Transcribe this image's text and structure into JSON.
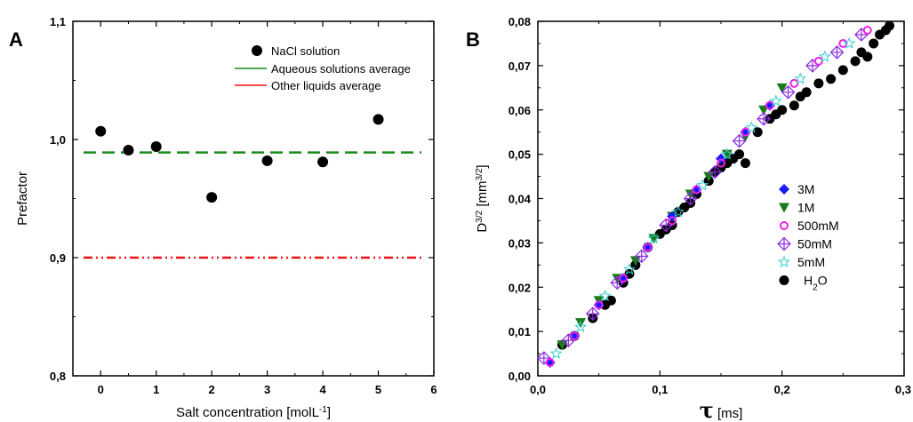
{
  "chart_data": [
    {
      "panel": "A",
      "type": "scatter",
      "xlabel": "Salt concentration [molL",
      "xlabel_sup": "-1",
      "xlabel_end": "]",
      "ylabel": "Prefactor",
      "xlim": [
        -0.5,
        6
      ],
      "ylim": [
        0.8,
        1.1
      ],
      "xticks": [
        0,
        1,
        2,
        3,
        4,
        5,
        6
      ],
      "xtick_labels": [
        "0",
        "1",
        "2",
        "3",
        "4",
        "5",
        "6"
      ],
      "yticks": [
        0.8,
        0.9,
        1.0,
        1.1
      ],
      "ytick_labels": [
        "0,8",
        "0,9",
        "1,0",
        "1,1"
      ],
      "legend_position": "top-right",
      "series": [
        {
          "name": "NaCl solution",
          "color": "#000000",
          "x": [
            0,
            0.5,
            1,
            2,
            3,
            4,
            5
          ],
          "y": [
            1.007,
            0.991,
            0.994,
            0.951,
            0.982,
            0.981,
            1.017
          ]
        }
      ],
      "reference_lines": [
        {
          "name": "Aqueous solutions average",
          "y": 0.989,
          "color": "#1a8a1a",
          "style": "dashed"
        },
        {
          "name": "Other liquids average",
          "y": 0.9,
          "color": "#ee1111",
          "style": "dash-dot-dot"
        }
      ]
    },
    {
      "panel": "B",
      "type": "scatter",
      "xlabel_symbol": "τ",
      "xlabel_unit": " [ms]",
      "ylabel_base": "D",
      "ylabel_sup": "3/2",
      "ylabel_unit": " [mm",
      "ylabel_unit_sup": "3/2",
      "ylabel_end": "]",
      "xlim": [
        0.0,
        0.3
      ],
      "ylim": [
        0.0,
        0.08
      ],
      "xticks": [
        0.0,
        0.1,
        0.2,
        0.3
      ],
      "xtick_labels": [
        "0,0",
        "0,1",
        "0,2",
        "0,3"
      ],
      "yticks": [
        0.0,
        0.01,
        0.02,
        0.03,
        0.04,
        0.05,
        0.06,
        0.07,
        0.08
      ],
      "ytick_labels": [
        "0,00",
        "0,01",
        "0,02",
        "0,03",
        "0,04",
        "0,05",
        "0,06",
        "0,07",
        "0,08"
      ],
      "legend_position": "center-right",
      "series": [
        {
          "name": "3M",
          "marker": "diamond",
          "color": "#1a1aff",
          "x": [
            0.01,
            0.03,
            0.05,
            0.07,
            0.09,
            0.11,
            0.13,
            0.15,
            0.17,
            0.19
          ],
          "y": [
            0.003,
            0.009,
            0.016,
            0.022,
            0.029,
            0.036,
            0.042,
            0.049,
            0.055,
            0.061
          ]
        },
        {
          "name": "1M",
          "marker": "triangle-down",
          "color": "#1a7a1a",
          "x": [
            0.02,
            0.035,
            0.05,
            0.065,
            0.08,
            0.095,
            0.11,
            0.125,
            0.14,
            0.155,
            0.17,
            0.185,
            0.2
          ],
          "y": [
            0.007,
            0.012,
            0.017,
            0.022,
            0.026,
            0.031,
            0.036,
            0.041,
            0.045,
            0.05,
            0.054,
            0.06,
            0.065
          ]
        },
        {
          "name": "500mM",
          "marker": "circle-open",
          "color": "#ee22ee",
          "x": [
            0.01,
            0.03,
            0.05,
            0.07,
            0.09,
            0.11,
            0.13,
            0.15,
            0.17,
            0.19,
            0.21,
            0.23,
            0.25,
            0.27
          ],
          "y": [
            0.003,
            0.009,
            0.016,
            0.022,
            0.029,
            0.035,
            0.042,
            0.048,
            0.055,
            0.061,
            0.066,
            0.071,
            0.075,
            0.078
          ]
        },
        {
          "name": "50mM",
          "marker": "diamond-cross",
          "color": "#8a2be2",
          "x": [
            0.005,
            0.025,
            0.045,
            0.065,
            0.085,
            0.105,
            0.125,
            0.145,
            0.165,
            0.185,
            0.205,
            0.225,
            0.245,
            0.265
          ],
          "y": [
            0.004,
            0.008,
            0.014,
            0.021,
            0.027,
            0.034,
            0.04,
            0.046,
            0.053,
            0.058,
            0.064,
            0.07,
            0.073,
            0.077
          ]
        },
        {
          "name": "5mM",
          "marker": "star-open",
          "color": "#33cccc",
          "x": [
            0.015,
            0.035,
            0.055,
            0.075,
            0.095,
            0.115,
            0.135,
            0.155,
            0.175,
            0.195,
            0.215,
            0.235,
            0.255
          ],
          "y": [
            0.005,
            0.011,
            0.018,
            0.024,
            0.031,
            0.037,
            0.043,
            0.05,
            0.056,
            0.062,
            0.067,
            0.072,
            0.075
          ]
        },
        {
          "name": "H",
          "name_sub": "2",
          "name_end": "O",
          "marker": "circle",
          "color": "#000000",
          "x": [
            0.02,
            0.03,
            0.045,
            0.055,
            0.06,
            0.07,
            0.075,
            0.08,
            0.09,
            0.1,
            0.105,
            0.11,
            0.115,
            0.12,
            0.125,
            0.13,
            0.14,
            0.145,
            0.15,
            0.155,
            0.16,
            0.165,
            0.17,
            0.18,
            0.19,
            0.195,
            0.2,
            0.21,
            0.215,
            0.22,
            0.23,
            0.24,
            0.25,
            0.26,
            0.265,
            0.27,
            0.275,
            0.28,
            0.285,
            0.288
          ],
          "y": [
            0.007,
            0.009,
            0.013,
            0.016,
            0.017,
            0.021,
            0.023,
            0.025,
            0.029,
            0.032,
            0.033,
            0.034,
            0.037,
            0.038,
            0.039,
            0.041,
            0.044,
            0.046,
            0.047,
            0.048,
            0.049,
            0.05,
            0.048,
            0.055,
            0.058,
            0.059,
            0.06,
            0.061,
            0.063,
            0.064,
            0.066,
            0.067,
            0.069,
            0.071,
            0.073,
            0.072,
            0.075,
            0.077,
            0.078,
            0.079
          ]
        }
      ]
    }
  ]
}
